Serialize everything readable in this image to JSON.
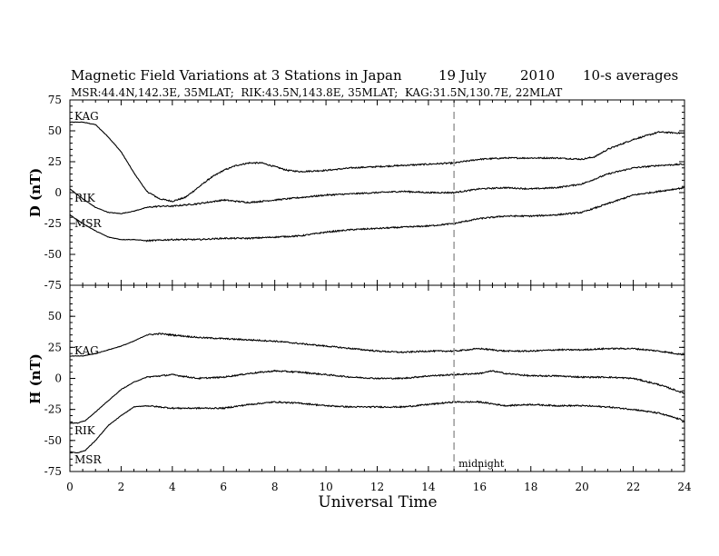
{
  "header": {
    "title": "Magnetic Field Variations at 3 Stations in Japan",
    "date": "19 July",
    "year": "2010",
    "averaging": "10-s averages",
    "stations": "MSR:44.4N,142.3E, 35MLAT;  RIK:43.5N,143.8E, 35MLAT;  KAG:31.5N,130.7E, 22MLAT"
  },
  "chart_data": [
    {
      "type": "line",
      "panel": "D",
      "ylabel": "D (nT)",
      "xlabel": "",
      "ylim": [
        -75,
        75
      ],
      "xlim": [
        0,
        24
      ],
      "yticks": [
        "75",
        "50",
        "25",
        "0",
        "-25",
        "-50",
        "-75"
      ],
      "series": [
        {
          "name": "KAG",
          "x": [
            0,
            0.5,
            1,
            1.5,
            2,
            2.5,
            3,
            3.5,
            4,
            4.5,
            5,
            5.5,
            6,
            6.5,
            7,
            7.5,
            8,
            8.5,
            9,
            10,
            11,
            12,
            13,
            14,
            15,
            16,
            17,
            18,
            19,
            20,
            20.5,
            21,
            22,
            23,
            24
          ],
          "y": [
            57,
            57,
            55,
            45,
            33,
            16,
            1,
            -5,
            -7,
            -4,
            4,
            12,
            18,
            22,
            24,
            24,
            21,
            18,
            17,
            18,
            20,
            21,
            22,
            23,
            24,
            27,
            28,
            28,
            28,
            27,
            29,
            35,
            43,
            49,
            48
          ]
        },
        {
          "name": "RIK",
          "x": [
            0,
            0.5,
            1,
            1.5,
            2,
            2.5,
            3,
            3.5,
            4,
            5,
            6,
            7,
            8,
            9,
            10,
            11,
            12,
            13,
            14,
            15,
            16,
            17,
            18,
            19,
            20,
            21,
            22,
            23,
            24
          ],
          "y": [
            3,
            -5,
            -12,
            -16,
            -17,
            -15,
            -12,
            -11,
            -11,
            -9,
            -6,
            -8,
            -6,
            -4,
            -2,
            -1,
            0,
            1,
            0,
            0,
            3,
            4,
            3,
            4,
            7,
            15,
            20,
            22,
            23
          ]
        },
        {
          "name": "MSR",
          "x": [
            0,
            0.5,
            1,
            1.5,
            2,
            2.5,
            3,
            4,
            5,
            6,
            7,
            8,
            9,
            10,
            11,
            12,
            13,
            14,
            15,
            16,
            17,
            18,
            19,
            20,
            21,
            22,
            23,
            24
          ],
          "y": [
            -18,
            -25,
            -31,
            -36,
            -38,
            -38,
            -39,
            -38,
            -38,
            -37,
            -37,
            -36,
            -35,
            -32,
            -30,
            -29,
            -28,
            -27,
            -25,
            -21,
            -19,
            -19,
            -18,
            -16,
            -9,
            -2,
            1,
            4
          ]
        }
      ]
    },
    {
      "type": "line",
      "panel": "H",
      "ylabel": "H (nT)",
      "xlabel": "Universal Time",
      "ylim": [
        -75,
        75
      ],
      "xlim": [
        0,
        24
      ],
      "yticks": [
        "50",
        "25",
        "0",
        "-25",
        "-50",
        "-75"
      ],
      "xticks": [
        "0",
        "2",
        "4",
        "6",
        "8",
        "10",
        "12",
        "14",
        "16",
        "18",
        "20",
        "22",
        "24"
      ],
      "annotation": {
        "x": 15,
        "label": "midnight"
      },
      "series": [
        {
          "name": "KAG",
          "x": [
            0,
            0.5,
            1,
            1.5,
            2,
            2.5,
            3,
            3.5,
            4,
            5,
            6,
            7,
            8,
            9,
            10,
            11,
            12,
            13,
            14,
            15,
            16,
            17,
            18,
            19,
            20,
            21,
            22,
            23,
            24
          ],
          "y": [
            18,
            18,
            20,
            23,
            26,
            30,
            35,
            36,
            35,
            33,
            32,
            31,
            30,
            28,
            26,
            24,
            22,
            21,
            22,
            22,
            24,
            22,
            22,
            23,
            23,
            24,
            24,
            22,
            19
          ]
        },
        {
          "name": "RIK",
          "x": [
            0,
            0.3,
            0.6,
            1,
            1.5,
            2,
            2.5,
            3,
            4,
            5,
            6,
            7,
            8,
            9,
            10,
            11,
            12,
            13,
            14,
            15,
            16,
            16.5,
            17,
            18,
            19,
            20,
            21,
            22,
            23,
            24
          ],
          "y": [
            -36,
            -36,
            -34,
            -27,
            -18,
            -9,
            -3,
            1,
            3,
            0,
            1,
            4,
            6,
            5,
            3,
            1,
            0,
            0,
            2,
            3,
            4,
            6,
            4,
            2,
            2,
            1,
            1,
            0,
            -5,
            -12
          ]
        },
        {
          "name": "MSR",
          "x": [
            0,
            0.3,
            0.6,
            1,
            1.5,
            2,
            2.5,
            3,
            4,
            5,
            6,
            7,
            8,
            9,
            10,
            11,
            12,
            13,
            14,
            15,
            16,
            17,
            18,
            19,
            20,
            21,
            22,
            23,
            24
          ],
          "y": [
            -59,
            -60,
            -58,
            -50,
            -38,
            -30,
            -23,
            -22,
            -24,
            -24,
            -24,
            -21,
            -19,
            -20,
            -22,
            -23,
            -23,
            -23,
            -21,
            -19,
            -19,
            -22,
            -21,
            -22,
            -22,
            -23,
            -25,
            -28,
            -34
          ]
        }
      ]
    }
  ]
}
